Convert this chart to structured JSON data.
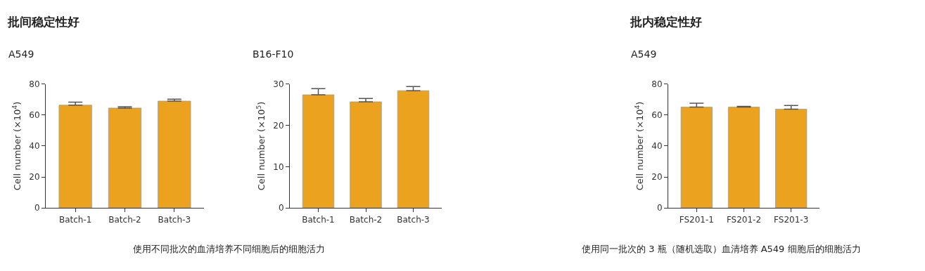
{
  "chart_data": [
    {
      "type": "bar",
      "title": "A549",
      "annotations": [
        "批间稳定性好",
        "使用不同批次的血清培养不同细胞后的细胞活力"
      ],
      "ylabel": "Cell number (×10$^{4}$)",
      "categories": [
        "Batch-1",
        "Batch-2",
        "Batch-3"
      ],
      "values": [
        66.4,
        64.5,
        69.0
      ],
      "errors": [
        [
          66.4,
          68.3
        ],
        [
          64.5,
          65.4
        ],
        [
          69.0,
          70.2
        ]
      ],
      "color": "#eba31f",
      "ylim": [
        0,
        80
      ],
      "yticks": [
        0,
        20,
        40,
        60,
        80
      ]
    },
    {
      "type": "bar",
      "title": "B16-F10",
      "ylabel": "Cell number (×10$^{5}$)",
      "categories": [
        "Batch-1",
        "Batch-2",
        "Batch-3"
      ],
      "values": [
        27.4,
        25.7,
        28.4
      ],
      "errors": [
        [
          27.4,
          28.9
        ],
        [
          25.7,
          26.5
        ],
        [
          28.4,
          29.4
        ]
      ],
      "color": "#eba31f",
      "ylim": [
        0,
        30
      ],
      "yticks": [
        0,
        10,
        20,
        30
      ]
    },
    {
      "type": "bar",
      "title": "A549",
      "annotations": [
        "批内稳定性好",
        "使用同一批次的 3 瓶（随机选取）血清培养 A549 细胞后的细胞活力"
      ],
      "ylabel": "Cell number (×10$^{4}$)",
      "categories": [
        "FS201-1",
        "FS201-2",
        "FS201-3"
      ],
      "values": [
        65.1,
        65.1,
        63.8
      ],
      "errors": [
        [
          65.1,
          67.7
        ],
        [
          65.1,
          65.6
        ],
        [
          63.8,
          66.2
        ]
      ],
      "color": "#eba31f",
      "ylim": [
        0,
        80
      ],
      "yticks": [
        0,
        20,
        40,
        60,
        80
      ]
    }
  ]
}
